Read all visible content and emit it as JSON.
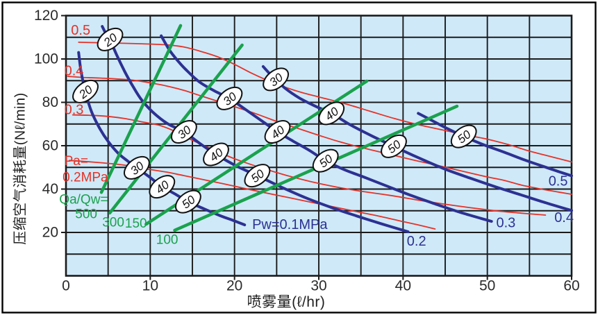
{
  "figure": {
    "background": "#ffffff",
    "border_color": "#000000"
  },
  "chart_data": {
    "type": "line",
    "title": "",
    "xlabel": "喷雾量(ℓ/hr)",
    "ylabel": "压缩空气消耗量(Nℓ/min)",
    "xlim": [
      0,
      60
    ],
    "ylim": [
      0,
      120
    ],
    "x_major_ticks": [
      0,
      10,
      20,
      30,
      40,
      50,
      60
    ],
    "y_major_ticks": [
      20,
      40,
      60,
      80,
      100,
      120
    ],
    "x_grid_step": 5,
    "y_grid_step": 10,
    "grid": true,
    "legend": "none",
    "plot_bg": "#cfe9f8",
    "grid_color": "#1b1b1b",
    "tick_label_color": "#2b2b2b",
    "colors": {
      "water_pressure_blue": "#2c3192",
      "air_pressure_red": "#e53228",
      "ratio_green": "#1aa24d"
    },
    "series": [
      {
        "group": "water_pressure",
        "name": "Pw=0.1MPa",
        "color": "#2c3192",
        "width": 4,
        "points": [
          [
            1.5,
            103
          ],
          [
            1.8,
            94
          ],
          [
            2.3,
            85
          ],
          [
            3,
            76
          ],
          [
            4,
            68
          ],
          [
            5,
            62
          ],
          [
            6.2,
            56.5
          ],
          [
            7.3,
            53
          ],
          [
            8.4,
            49.8
          ],
          [
            9.9,
            45.6
          ],
          [
            11.4,
            41.1
          ],
          [
            13,
            37.6
          ],
          [
            14.5,
            34.2
          ],
          [
            16.3,
            31
          ],
          [
            18.3,
            27.7
          ],
          [
            19.8,
            25.6
          ],
          [
            21.2,
            23.5
          ]
        ]
      },
      {
        "group": "water_pressure",
        "name": "Pw=0.2MPa",
        "color": "#2c3192",
        "width": 4,
        "points": [
          [
            4.3,
            115
          ],
          [
            4.7,
            112
          ],
          [
            5.2,
            109
          ],
          [
            6,
            102
          ],
          [
            7,
            94
          ],
          [
            8,
            87
          ],
          [
            9,
            81
          ],
          [
            10.3,
            75.5
          ],
          [
            12,
            70.3
          ],
          [
            14,
            66.4
          ],
          [
            15.9,
            61
          ],
          [
            17.8,
            56
          ],
          [
            20.2,
            50.7
          ],
          [
            22.7,
            46.2
          ],
          [
            25.5,
            41
          ],
          [
            28.5,
            35.9
          ],
          [
            31.5,
            31.5
          ],
          [
            34.5,
            27.6
          ],
          [
            37.5,
            23.9
          ],
          [
            40.6,
            20.3
          ]
        ]
      },
      {
        "group": "water_pressure",
        "name": "Pw=0.3MPa",
        "color": "#2c3192",
        "width": 4,
        "points": [
          [
            11.3,
            110.7
          ],
          [
            12.3,
            104
          ],
          [
            13.3,
            99
          ],
          [
            14.2,
            95.2
          ],
          [
            15.8,
            89.5
          ],
          [
            17.6,
            85.3
          ],
          [
            19.4,
            81.8
          ],
          [
            21.2,
            77
          ],
          [
            23.1,
            71.8
          ],
          [
            25.1,
            66.4
          ],
          [
            27,
            62
          ],
          [
            28.9,
            57.8
          ],
          [
            30.8,
            53.1
          ],
          [
            33,
            49
          ],
          [
            35.5,
            45.3
          ],
          [
            38,
            41.5
          ],
          [
            41,
            37
          ],
          [
            44,
            32.9
          ],
          [
            47,
            29
          ],
          [
            50.5,
            25.1
          ]
        ]
      },
      {
        "group": "water_pressure",
        "name": "Pw=0.4MPa",
        "color": "#2c3192",
        "width": 4,
        "points": [
          [
            23.4,
            96.5
          ],
          [
            24.1,
            93.5
          ],
          [
            24.9,
            90.6
          ],
          [
            26,
            86.5
          ],
          [
            27.7,
            82
          ],
          [
            29.6,
            78.2
          ],
          [
            31.5,
            74.9
          ],
          [
            33.8,
            69.5
          ],
          [
            36.3,
            64.5
          ],
          [
            38.9,
            59.7
          ],
          [
            41.5,
            55
          ],
          [
            44.9,
            49.3
          ],
          [
            48,
            45
          ],
          [
            51,
            41
          ],
          [
            54,
            37.3
          ],
          [
            57,
            33.6
          ],
          [
            60,
            30.1
          ]
        ]
      },
      {
        "group": "water_pressure",
        "name": "Pw=0.5MPa",
        "color": "#2c3192",
        "width": 4,
        "points": [
          [
            41.8,
            74.9
          ],
          [
            43.5,
            71.5
          ],
          [
            45.3,
            67.8
          ],
          [
            47.2,
            64.3
          ],
          [
            49.5,
            60.5
          ],
          [
            52,
            57
          ],
          [
            54.5,
            53.3
          ],
          [
            57,
            50
          ],
          [
            58.5,
            48
          ],
          [
            60,
            46.1
          ]
        ]
      },
      {
        "group": "air_pressure",
        "name": "Pa=0.2MPa",
        "color": "#e53228",
        "width": 1.8,
        "points": [
          [
            0.4,
            53.2
          ],
          [
            2,
            52.8
          ],
          [
            4,
            52.2
          ],
          [
            6,
            51.5
          ],
          [
            8,
            50.4
          ],
          [
            10,
            49
          ],
          [
            12,
            47.8
          ],
          [
            14,
            46.2
          ],
          [
            16,
            44.6
          ],
          [
            18,
            43
          ],
          [
            20,
            41.3
          ],
          [
            22.5,
            39.2
          ],
          [
            25,
            37.2
          ],
          [
            27.5,
            35.2
          ],
          [
            30,
            33.2
          ],
          [
            32.5,
            31.2
          ],
          [
            35,
            29.2
          ],
          [
            37.5,
            27.2
          ],
          [
            40,
            25
          ],
          [
            42,
            23.3
          ],
          [
            43.8,
            21.6
          ]
        ]
      },
      {
        "group": "air_pressure",
        "name": "Pa=0.3MPa",
        "color": "#e53228",
        "width": 1.8,
        "points": [
          [
            0.8,
            74.2
          ],
          [
            3,
            74
          ],
          [
            5,
            73.5
          ],
          [
            7,
            72.5
          ],
          [
            9,
            71
          ],
          [
            11,
            69.5
          ],
          [
            13,
            66.5
          ],
          [
            15,
            62.5
          ],
          [
            17.7,
            57.8
          ],
          [
            20,
            54
          ],
          [
            23,
            50
          ],
          [
            26,
            46.5
          ],
          [
            29,
            43.5
          ],
          [
            32,
            41
          ],
          [
            35,
            39
          ],
          [
            38.3,
            37.2
          ],
          [
            42,
            34.8
          ],
          [
            45,
            33
          ],
          [
            48,
            31.4
          ],
          [
            51,
            30
          ],
          [
            54,
            28.9
          ],
          [
            56.9,
            28
          ]
        ]
      },
      {
        "group": "air_pressure",
        "name": "Pa=0.4MPa",
        "color": "#e53228",
        "width": 1.8,
        "points": [
          [
            0.2,
            92
          ],
          [
            2,
            91.5
          ],
          [
            4,
            91.2
          ],
          [
            6,
            90.8
          ],
          [
            8,
            90.2
          ],
          [
            10,
            89
          ],
          [
            12,
            87.5
          ],
          [
            14,
            85.5
          ],
          [
            16,
            83
          ],
          [
            18,
            80.5
          ],
          [
            20,
            78
          ],
          [
            22.5,
            74.8
          ],
          [
            25,
            71.2
          ],
          [
            27.5,
            68
          ],
          [
            30,
            64.8
          ],
          [
            32.5,
            61.8
          ],
          [
            35,
            59.2
          ],
          [
            38,
            56.4
          ],
          [
            41,
            53.6
          ],
          [
            44,
            51
          ],
          [
            47,
            48.3
          ],
          [
            50,
            45.6
          ],
          [
            52,
            44
          ],
          [
            54,
            41.9
          ],
          [
            56,
            40.3
          ],
          [
            58,
            38.9
          ],
          [
            60,
            37.6
          ]
        ]
      },
      {
        "group": "air_pressure",
        "name": "Pa=0.5MPa",
        "color": "#e53228",
        "width": 1.8,
        "points": [
          [
            1.5,
            107.7
          ],
          [
            5,
            107.4
          ],
          [
            9,
            107
          ],
          [
            12,
            106.5
          ],
          [
            14,
            105.5
          ],
          [
            16,
            103.5
          ],
          [
            18,
            101
          ],
          [
            20,
            97.5
          ],
          [
            22,
            93.5
          ],
          [
            24,
            90
          ],
          [
            26,
            87
          ],
          [
            28,
            84.5
          ],
          [
            30,
            82.5
          ],
          [
            33,
            79.5
          ],
          [
            36,
            76
          ],
          [
            39,
            72.5
          ],
          [
            42,
            69.5
          ],
          [
            45,
            67
          ],
          [
            48,
            64.5
          ],
          [
            50,
            63
          ],
          [
            52.5,
            60.5
          ],
          [
            55,
            57.5
          ],
          [
            57.5,
            55
          ],
          [
            60,
            52.5
          ]
        ]
      },
      {
        "group": "air_water_ratio",
        "name": "Qa/Qw=500",
        "color": "#1aa24d",
        "width": 4.5,
        "points": [
          [
            4.2,
            38.5
          ],
          [
            13.6,
            115.4
          ]
        ]
      },
      {
        "group": "air_water_ratio",
        "name": "Qa/Qw=300",
        "color": "#1aa24d",
        "width": 4.5,
        "points": [
          [
            5.2,
            29
          ],
          [
            20.9,
            106.4
          ]
        ]
      },
      {
        "group": "air_water_ratio",
        "name": "Qa/Qw=150",
        "color": "#1aa24d",
        "width": 4.5,
        "points": [
          [
            9.5,
            23.8
          ],
          [
            35.7,
            89.8
          ]
        ]
      },
      {
        "group": "air_water_ratio",
        "name": "Qa/Qw=100",
        "color": "#1aa24d",
        "width": 4.5,
        "points": [
          [
            12.9,
            21
          ],
          [
            46.4,
            78.2
          ]
        ]
      }
    ],
    "ovals": [
      {
        "label": "20",
        "x": 2.31,
        "y": 85
      },
      {
        "label": "30",
        "x": 8.4,
        "y": 49.8
      },
      {
        "label": "40",
        "x": 11.4,
        "y": 41.1
      },
      {
        "label": "50",
        "x": 14.5,
        "y": 34.2
      },
      {
        "label": "20",
        "x": 5.23,
        "y": 109
      },
      {
        "label": "30",
        "x": 14,
        "y": 66.4
      },
      {
        "label": "40",
        "x": 17.8,
        "y": 56
      },
      {
        "label": "50",
        "x": 22.7,
        "y": 46.2
      },
      {
        "label": "30",
        "x": 19.4,
        "y": 81.8
      },
      {
        "label": "40",
        "x": 25.1,
        "y": 66.4
      },
      {
        "label": "50",
        "x": 30.8,
        "y": 53.1
      },
      {
        "label": "30",
        "x": 24.9,
        "y": 90.6
      },
      {
        "label": "40",
        "x": 31.5,
        "y": 74.9
      },
      {
        "label": "50",
        "x": 38.9,
        "y": 59.7
      },
      {
        "label": "50",
        "x": 47.2,
        "y": 64.3
      }
    ],
    "annotations": [
      {
        "text": "0.5",
        "color": "#e53228",
        "x": 0.6,
        "y": 113.2,
        "anchor": "start",
        "size": 20
      },
      {
        "text": "0.4",
        "color": "#e53228",
        "x": -0.2,
        "y": 94.4,
        "anchor": "start",
        "size": 20
      },
      {
        "text": "0.3",
        "color": "#e53228",
        "x": -0.2,
        "y": 76.5,
        "anchor": "start",
        "size": 20
      },
      {
        "text": "Pa=",
        "color": "#e53228",
        "x": -0.2,
        "y": 52.8,
        "anchor": "start",
        "size": 19
      },
      {
        "text": "0.2MPa",
        "color": "#e53228",
        "x": -0.4,
        "y": 45.3,
        "anchor": "start",
        "size": 19
      },
      {
        "text": "Qa/Qw=",
        "color": "#1aa24d",
        "x": -0.8,
        "y": 35,
        "anchor": "start",
        "size": 19
      },
      {
        "text": "500",
        "color": "#1aa24d",
        "x": 1.1,
        "y": 28.3,
        "anchor": "start",
        "size": 19
      },
      {
        "text": "300",
        "color": "#1aa24d",
        "x": 4.3,
        "y": 24.5,
        "anchor": "start",
        "size": 19
      },
      {
        "text": "150",
        "color": "#1aa24d",
        "x": 7,
        "y": 24,
        "anchor": "start",
        "size": 19
      },
      {
        "text": "100",
        "color": "#1aa24d",
        "x": 10.7,
        "y": 16.5,
        "anchor": "start",
        "size": 19
      },
      {
        "text": "Pw=0.1MPa",
        "color": "#2c3192",
        "x": 22.1,
        "y": 23.5,
        "anchor": "start",
        "size": 20
      },
      {
        "text": "0.2",
        "color": "#2c3192",
        "x": 41.6,
        "y": 15.8,
        "anchor": "middle",
        "size": 20
      },
      {
        "text": "0.3",
        "color": "#2c3192",
        "x": 52.2,
        "y": 24.3,
        "anchor": "middle",
        "size": 20
      },
      {
        "text": "0.4",
        "color": "#2c3192",
        "x": 59.1,
        "y": 26.7,
        "anchor": "middle",
        "size": 20
      },
      {
        "text": "0.5",
        "color": "#2c3192",
        "x": 58.4,
        "y": 43.5,
        "anchor": "middle",
        "size": 20
      }
    ]
  }
}
